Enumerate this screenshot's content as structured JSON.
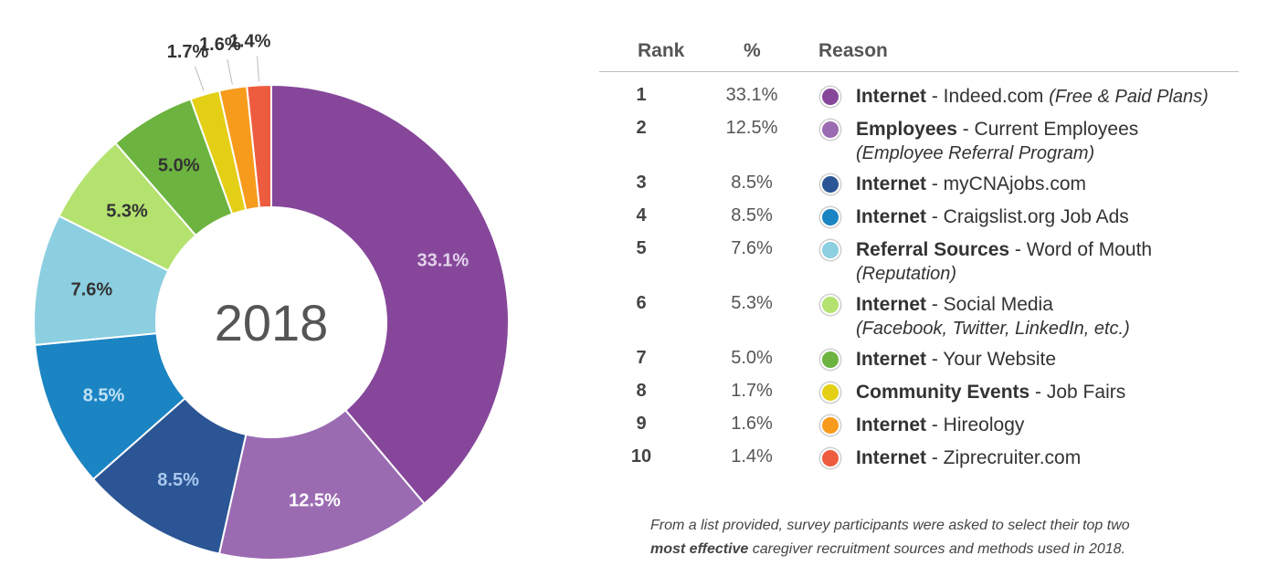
{
  "chart_data": {
    "type": "pie",
    "center_label": "2018",
    "slices": [
      {
        "label": "33.1%",
        "value": 33.1,
        "color": "#86479b",
        "label_color": "#e3d2ea"
      },
      {
        "label": "12.5%",
        "value": 12.5,
        "color": "#9b6bb2",
        "label_color": "#ffffff"
      },
      {
        "label": "8.5%",
        "value": 8.5,
        "color": "#2b5594",
        "label_color": "#a9c8ee"
      },
      {
        "label": "8.5%",
        "value": 8.5,
        "color": "#1b84c3",
        "label_color": "#bfe2f6"
      },
      {
        "label": "7.6%",
        "value": 7.6,
        "color": "#8ccfe0",
        "label_color": "#333333"
      },
      {
        "label": "5.3%",
        "value": 5.3,
        "color": "#b4e26f",
        "label_color": "#333333"
      },
      {
        "label": "5.0%",
        "value": 5.0,
        "color": "#6cb33f",
        "label_color": "#333333"
      },
      {
        "label": "1.7%",
        "value": 1.7,
        "color": "#e4cf17",
        "label_color": "#333333"
      },
      {
        "label": "1.6%",
        "value": 1.6,
        "color": "#f79b1d",
        "label_color": "#333333"
      },
      {
        "label": "1.4%",
        "value": 1.4,
        "color": "#ee5c40",
        "label_color": "#333333"
      }
    ]
  },
  "table": {
    "headers": {
      "rank": "Rank",
      "pct": "%",
      "reason": "Reason"
    },
    "rows": [
      {
        "rank": "1",
        "pct": "33.1%",
        "category": "Internet",
        "detail": " - Indeed.com ",
        "sub": "(Free & Paid Plans)",
        "sub_inline": true,
        "color": "#86479b"
      },
      {
        "rank": "2",
        "pct": "12.5%",
        "category": "Employees",
        "detail": " - Current Employees",
        "sub": "(Employee Referral Program)",
        "sub_inline": false,
        "color": "#9b6bb2"
      },
      {
        "rank": "3",
        "pct": "8.5%",
        "category": "Internet",
        "detail": " - myCNAjobs.com",
        "sub": "",
        "sub_inline": true,
        "color": "#2b5594"
      },
      {
        "rank": "4",
        "pct": "8.5%",
        "category": "Internet",
        "detail": " - Craigslist.org Job Ads",
        "sub": "",
        "sub_inline": true,
        "color": "#1b84c3"
      },
      {
        "rank": "5",
        "pct": "7.6%",
        "category": "Referral Sources",
        "detail": " - Word of Mouth",
        "sub": "(Reputation)",
        "sub_inline": false,
        "color": "#8ccfe0"
      },
      {
        "rank": "6",
        "pct": "5.3%",
        "category": "Internet",
        "detail": " - Social Media",
        "sub": "(Facebook, Twitter, LinkedIn, etc.)",
        "sub_inline": false,
        "color": "#b4e26f"
      },
      {
        "rank": "7",
        "pct": "5.0%",
        "category": "Internet",
        "detail": " - Your Website",
        "sub": "",
        "sub_inline": true,
        "color": "#6cb33f"
      },
      {
        "rank": "8",
        "pct": "1.7%",
        "category": "Community Events",
        "detail": " - Job Fairs",
        "sub": "",
        "sub_inline": true,
        "color": "#e4cf17"
      },
      {
        "rank": "9",
        "pct": "1.6%",
        "category": "Internet",
        "detail": " - Hireology",
        "sub": "",
        "sub_inline": true,
        "color": "#f79b1d"
      },
      {
        "rank": "10",
        "pct": "1.4%",
        "category": "Internet",
        "detail": " - Ziprecruiter.com",
        "sub": "",
        "sub_inline": true,
        "color": "#ee5c40"
      }
    ]
  },
  "footnote": {
    "line1": "From a list provided, survey participants were asked to select their top two",
    "bold": "most effective",
    "line2_rest": " caregiver recruitment sources and methods used in 2018."
  }
}
